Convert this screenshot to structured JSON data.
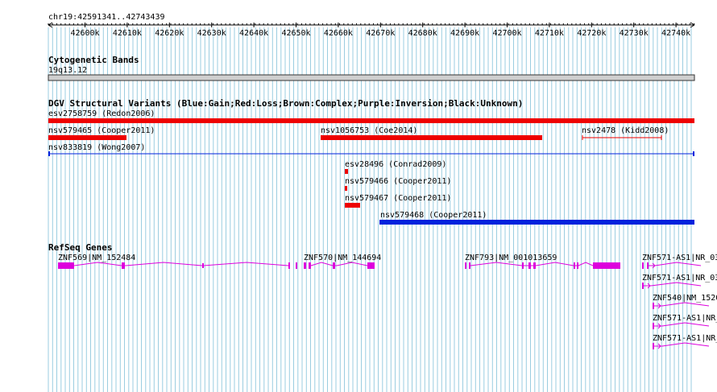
{
  "ruler": {
    "region_label": "chr19:42591341..42743439",
    "ticks": [
      "42600k",
      "42610k",
      "42620k",
      "42630k",
      "42640k",
      "42650k",
      "42660k",
      "42670k",
      "42680k",
      "42690k",
      "42700k",
      "42710k",
      "42720k",
      "42730k",
      "42740k"
    ]
  },
  "tracks": {
    "cytoband": {
      "title": "Cytogenetic Bands",
      "band_label": "19q13.12"
    },
    "dgv": {
      "title": "DGV Structural Variants (Blue:Gain;Red:Loss;Brown:Complex;Purple:Inversion;Black:Unknown)",
      "features": [
        {
          "label": "esv2758759 (Redon2006)",
          "type": "loss"
        },
        {
          "label": "nsv579465 (Cooper2011)",
          "type": "loss"
        },
        {
          "label": "nsv1056753 (Coe2014)",
          "type": "loss"
        },
        {
          "label": "nsv2478 (Kidd2008)",
          "type": "loss"
        },
        {
          "label": "nsv833819 (Wong2007)",
          "type": "gain"
        },
        {
          "label": "esv28496 (Conrad2009)",
          "type": "loss"
        },
        {
          "label": "nsv579466 (Cooper2011)",
          "type": "loss"
        },
        {
          "label": "nsv579467 (Cooper2011)",
          "type": "loss"
        },
        {
          "label": "nsv579468 (Cooper2011)",
          "type": "gain"
        }
      ]
    },
    "refseq": {
      "title": "RefSeq Genes",
      "genes": [
        {
          "label": "ZNF569|NM_152484"
        },
        {
          "label": "ZNF570|NM_144694"
        },
        {
          "label": "ZNF793|NM_001013659"
        },
        {
          "label": "ZNF571-AS1|NR_03"
        },
        {
          "label": "ZNF571-AS1|NR_03"
        },
        {
          "label": "ZNF540|NM_1520"
        },
        {
          "label": "ZNF571-AS1|NR_"
        },
        {
          "label": "ZNF571-AS1|NR_"
        }
      ]
    }
  },
  "colors": {
    "gain": "#0022dd",
    "loss": "#ee0000",
    "gene": "#dd00dd",
    "grid": "#9bcde0"
  }
}
